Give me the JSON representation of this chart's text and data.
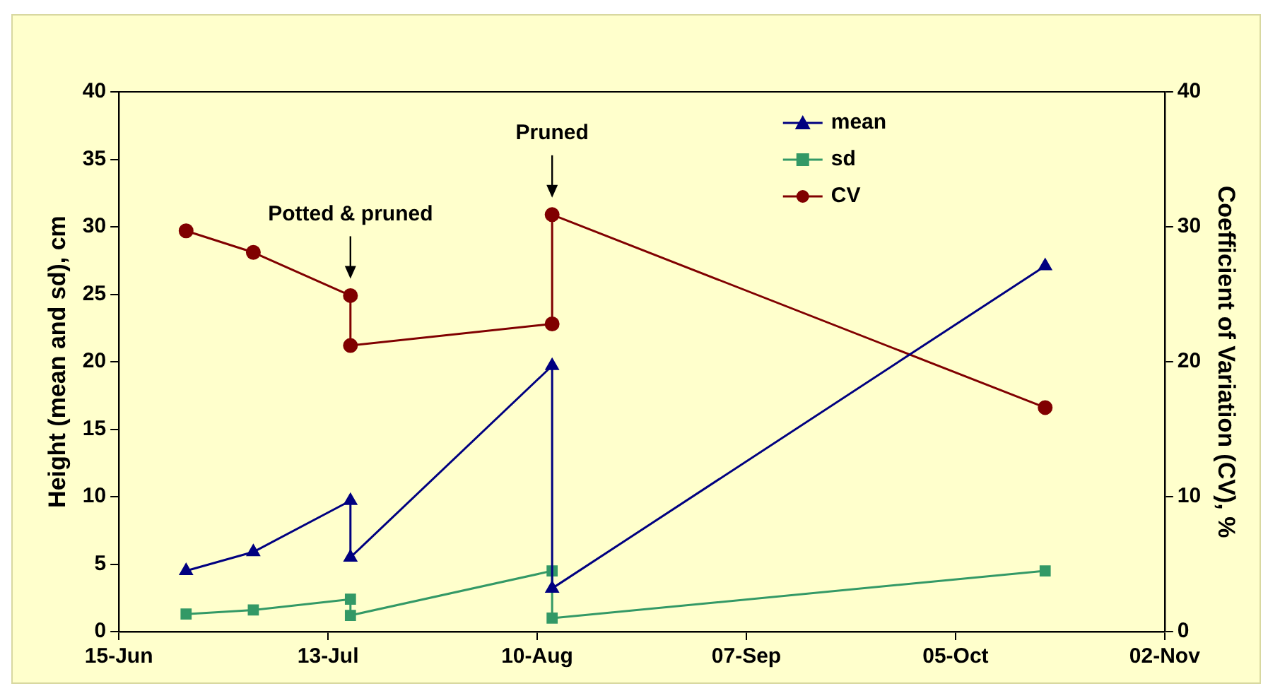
{
  "chart_data": {
    "type": "line",
    "ylabel": "Height (mean and sd), cm",
    "y2label": "Coefficient of Variation (CV), %",
    "x": [
      "--06-24",
      "--07-03",
      "--07-16",
      "--07-16",
      "--08-12",
      "--08-12",
      "--10-17"
    ],
    "series": [
      {
        "name": "mean",
        "color": "#000080",
        "marker": "triangle",
        "values": [
          4.5,
          5.9,
          9.7,
          5.5,
          19.7,
          3.2,
          27.1
        ]
      },
      {
        "name": "sd",
        "color": "#339966",
        "marker": "square",
        "values": [
          1.3,
          1.6,
          2.4,
          1.2,
          4.5,
          1.0,
          4.5
        ]
      },
      {
        "name": "CV",
        "color": "#800000",
        "marker": "circle",
        "axis": "y2",
        "values": [
          29.7,
          28.1,
          24.9,
          21.2,
          22.8,
          30.9,
          16.6
        ]
      }
    ],
    "xlim": [
      "--06-15",
      "--11-02"
    ],
    "xticks": [
      {
        "value": "--06-15",
        "label": "15-Jun"
      },
      {
        "value": "--07-13",
        "label": "13-Jul"
      },
      {
        "value": "--08-10",
        "label": "10-Aug"
      },
      {
        "value": "--09-07",
        "label": "07-Sep"
      },
      {
        "value": "--10-05",
        "label": "05-Oct"
      },
      {
        "value": "--11-02",
        "label": "02-Nov"
      }
    ],
    "ylim": [
      0,
      40
    ],
    "yticks": [
      0,
      5,
      10,
      15,
      20,
      25,
      30,
      35,
      40
    ],
    "y2lim": [
      0,
      40
    ],
    "y2ticks": [
      0,
      10,
      20,
      30,
      40
    ],
    "annotations": [
      "Potted & pruned",
      "Pruned"
    ],
    "legend": "top",
    "grid": false,
    "line_style": "solid"
  }
}
